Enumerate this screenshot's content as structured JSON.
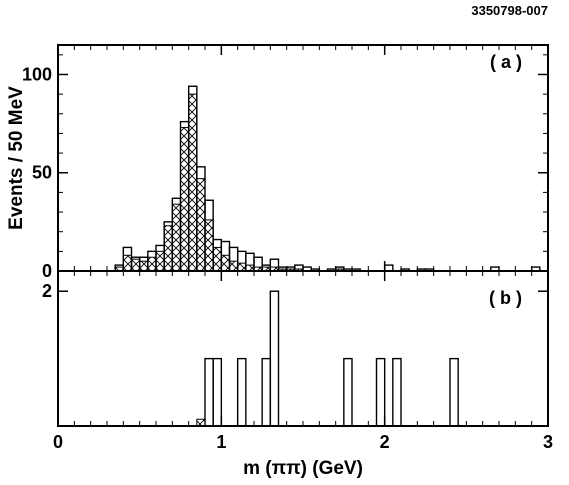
{
  "figure_id": "3350798-007",
  "chart_data": [
    {
      "panel": "(a)",
      "type": "bar",
      "x_bins": [
        0.3,
        0.35,
        0.4,
        0.45,
        0.5,
        0.55,
        0.6,
        0.65,
        0.7,
        0.75,
        0.8,
        0.85,
        0.9,
        0.95,
        1.0,
        1.05,
        1.1,
        1.15,
        1.2,
        1.25,
        1.3,
        1.35,
        1.4,
        1.45,
        1.5,
        1.55,
        1.6,
        1.65,
        1.7,
        1.75,
        1.8,
        1.85,
        1.9,
        1.95,
        2.0,
        2.05,
        2.1,
        2.15,
        2.2,
        2.25,
        2.3,
        2.35,
        2.4,
        2.45,
        2.5,
        2.55,
        2.6,
        2.65,
        2.7,
        2.75,
        2.8,
        2.85,
        2.9,
        2.95
      ],
      "bin_width": 0.05,
      "series": [
        {
          "style": "open",
          "values": [
            0,
            3,
            12,
            7,
            7,
            10,
            13,
            25,
            37,
            76,
            94,
            53,
            36,
            16,
            15,
            12,
            10,
            9,
            7,
            3,
            6,
            2,
            2,
            3,
            2,
            1,
            0,
            1,
            2,
            1,
            1,
            0,
            0,
            0,
            3,
            0,
            1,
            0,
            1,
            1,
            0,
            0,
            0,
            0,
            0,
            0,
            0,
            2,
            0,
            0,
            0,
            0,
            2,
            0
          ]
        },
        {
          "style": "hatched",
          "values": [
            0,
            2,
            8,
            6,
            5,
            7,
            10,
            23,
            34,
            73,
            90,
            47,
            26,
            12,
            8,
            5,
            4,
            3,
            2,
            2,
            2,
            1,
            1,
            1,
            0,
            0,
            0,
            0,
            1,
            0,
            0,
            0,
            0,
            0,
            0,
            0,
            0,
            0,
            0,
            0,
            0,
            0,
            0,
            0,
            0,
            0,
            0,
            0,
            0,
            0,
            0,
            0,
            0,
            0
          ]
        }
      ],
      "xlim": [
        0,
        3
      ],
      "ylim": [
        0,
        115
      ],
      "yticks": [
        "0",
        "50",
        "100"
      ],
      "ylabel": "Events / 50 MeV"
    },
    {
      "panel": "(b)",
      "type": "bar",
      "x_bins": [
        0.3,
        0.35,
        0.4,
        0.45,
        0.5,
        0.55,
        0.6,
        0.65,
        0.7,
        0.75,
        0.8,
        0.85,
        0.9,
        0.95,
        1.0,
        1.05,
        1.1,
        1.15,
        1.2,
        1.25,
        1.3,
        1.35,
        1.4,
        1.45,
        1.5,
        1.55,
        1.6,
        1.65,
        1.7,
        1.75,
        1.8,
        1.85,
        1.9,
        1.95,
        2.0,
        2.05,
        2.1,
        2.15,
        2.2,
        2.25,
        2.3,
        2.35,
        2.4,
        2.45,
        2.5,
        2.55,
        2.6,
        2.65,
        2.7,
        2.75,
        2.8,
        2.85,
        2.9,
        2.95
      ],
      "bin_width": 0.05,
      "series": [
        {
          "style": "open",
          "values": [
            0,
            0,
            0,
            0,
            0,
            0,
            0,
            0,
            0,
            0,
            0,
            0,
            1,
            1,
            0,
            0,
            1,
            0,
            0,
            1,
            2,
            0,
            0,
            0,
            0,
            0,
            0,
            0,
            0,
            1,
            0,
            0,
            0,
            1,
            0,
            1,
            0,
            0,
            0,
            0,
            0,
            0,
            1,
            0,
            0,
            0,
            0,
            0,
            0,
            0,
            0,
            0,
            0,
            0
          ]
        },
        {
          "style": "hatched",
          "values": [
            0,
            0,
            0,
            0,
            0,
            0,
            0,
            0,
            0,
            0,
            0,
            0.1,
            0,
            0,
            0,
            0,
            0,
            0,
            0,
            0,
            0,
            0,
            0,
            0,
            0,
            0,
            0,
            0,
            0,
            0,
            0,
            0,
            0,
            0,
            0,
            0,
            0,
            0,
            0,
            0,
            0,
            0,
            0,
            0,
            0,
            0,
            0,
            0,
            0,
            0,
            0,
            0,
            0,
            0
          ]
        }
      ],
      "xlim": [
        0,
        3
      ],
      "ylim": [
        0,
        2.3
      ],
      "yticks": [
        "2"
      ],
      "xticks": [
        "0",
        "1",
        "2",
        "3"
      ],
      "xlabel": "m (ππ) (GeV)"
    }
  ]
}
